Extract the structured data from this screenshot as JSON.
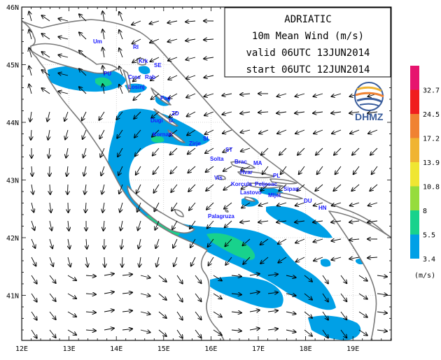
{
  "title_box": {
    "line1": "ADRIATIC",
    "line2": "10m Mean Wind (m/s)",
    "line3": "valid 06UTC 13JUN2014",
    "line4": "start 06UTC 12JUN2014"
  },
  "logo": {
    "text": "DHMZ"
  },
  "axes": {
    "lon_ticks": [
      "12E",
      "13E",
      "14E",
      "15E",
      "16E",
      "17E",
      "18E",
      "19E"
    ],
    "lat_ticks": [
      "46N",
      "45N",
      "44N",
      "43N",
      "42N",
      "41N"
    ]
  },
  "legend": {
    "unit": "(m/s)",
    "levels": [
      "3.4",
      "5.5",
      "8",
      "10.8",
      "13.9",
      "17.2",
      "24.5",
      "32.7"
    ],
    "colors": [
      "#00a0e6",
      "#18d28c",
      "#96dc3c",
      "#f0e632",
      "#f0b432",
      "#f08232",
      "#f01e1e",
      "#e6146e"
    ]
  },
  "places": [
    {
      "name": "Um"
    },
    {
      "name": "RI"
    },
    {
      "name": "Krk"
    },
    {
      "name": "SE"
    },
    {
      "name": "PU"
    },
    {
      "name": "Cres"
    },
    {
      "name": "Rab"
    },
    {
      "name": "Losinj"
    },
    {
      "name": "Pag"
    },
    {
      "name": "ZD"
    },
    {
      "name": "Dugi"
    },
    {
      "name": "O."
    },
    {
      "name": "Kornati"
    },
    {
      "name": "SI"
    },
    {
      "name": "Zirje"
    },
    {
      "name": "ST"
    },
    {
      "name": "Solta"
    },
    {
      "name": "Brac"
    },
    {
      "name": "MA"
    },
    {
      "name": "Hvar"
    },
    {
      "name": "PL"
    },
    {
      "name": "Vis"
    },
    {
      "name": "Korcula"
    },
    {
      "name": "Peljesac"
    },
    {
      "name": "Lastovo"
    },
    {
      "name": "Mljet"
    },
    {
      "name": "Sipan"
    },
    {
      "name": "DU"
    },
    {
      "name": "HN"
    },
    {
      "name": "Palagruza"
    }
  ]
}
